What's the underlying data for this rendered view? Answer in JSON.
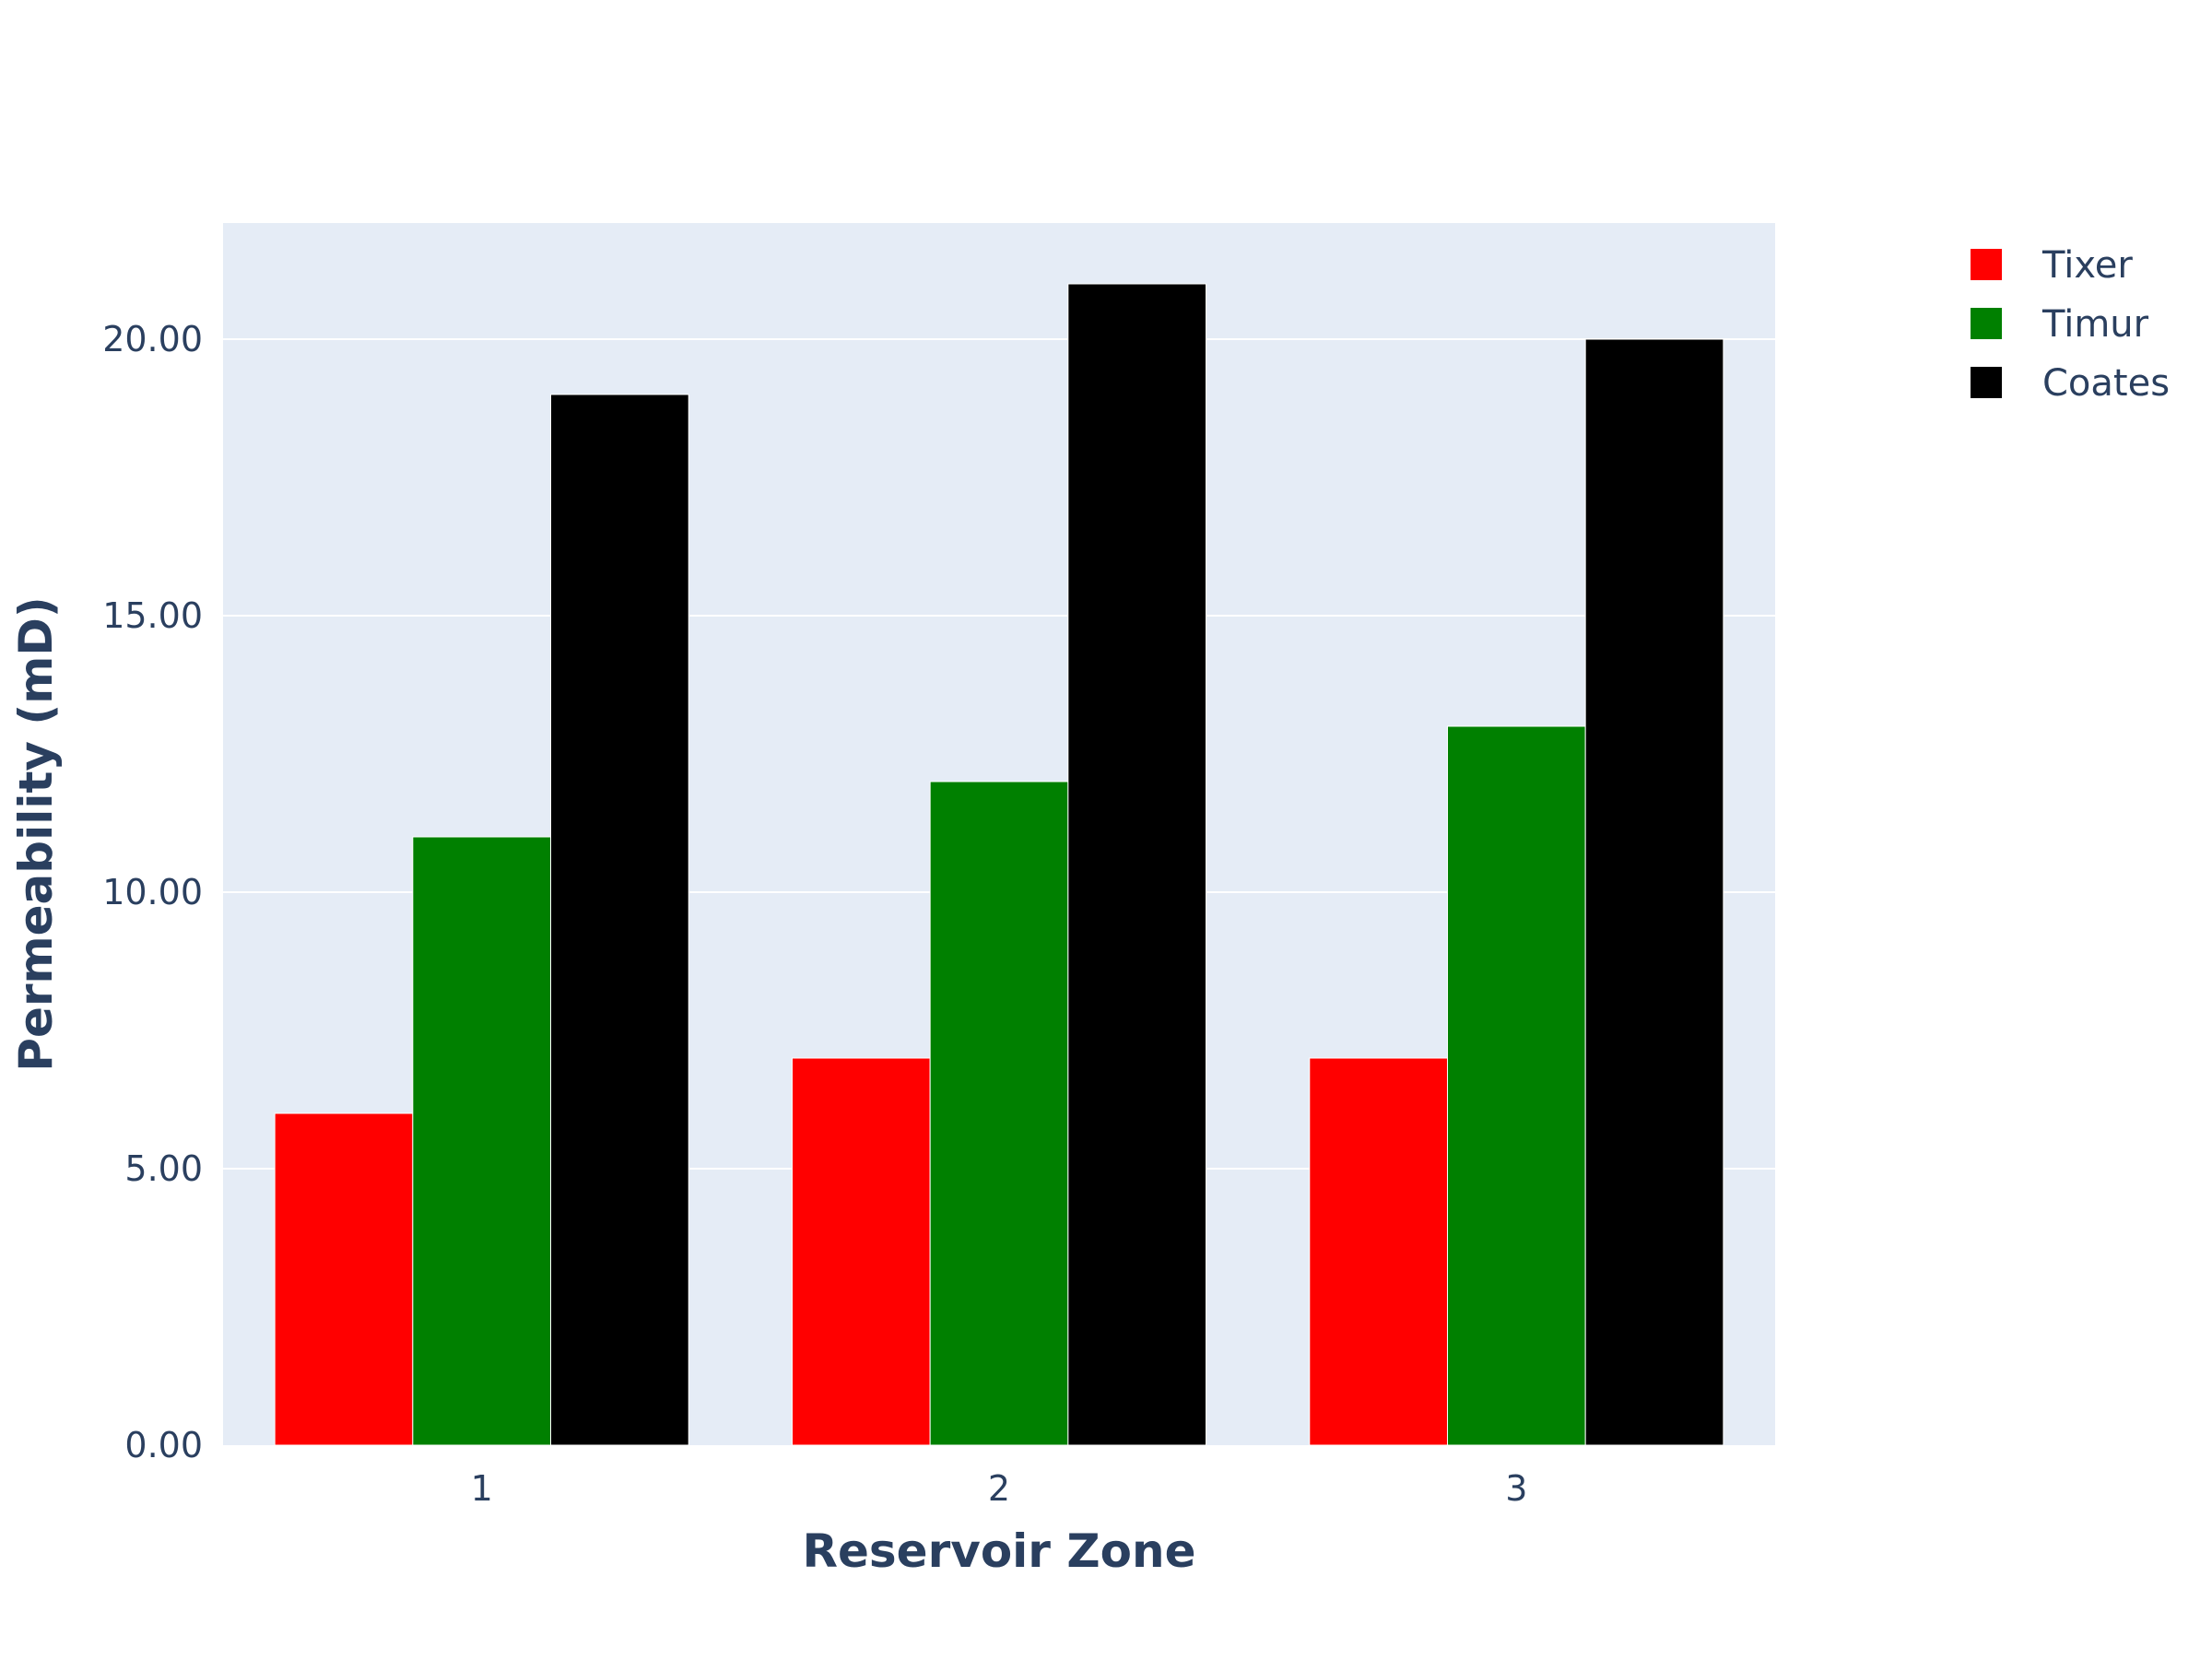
{
  "chart_data": {
    "type": "bar",
    "categories": [
      "1",
      "2",
      "3"
    ],
    "series": [
      {
        "name": "Tixer",
        "values": [
          6,
          7,
          7
        ],
        "color": "#ff0000"
      },
      {
        "name": "Timur",
        "values": [
          11,
          12,
          13
        ],
        "color": "#008000"
      },
      {
        "name": "Coates",
        "values": [
          19,
          21,
          20
        ],
        "color": "#000000"
      }
    ],
    "xlabel": "Reservoir Zone",
    "ylabel": "Permeability (mD)",
    "ylim": [
      0,
      22.1
    ],
    "yticks": [
      "0.00",
      "5.00",
      "10.00",
      "15.00",
      "20.00"
    ],
    "ytick_values": [
      0,
      5,
      10,
      15,
      20
    ],
    "grid": true,
    "plot_bgcolor": "#e5ecf6",
    "legend_position": "top-right"
  }
}
